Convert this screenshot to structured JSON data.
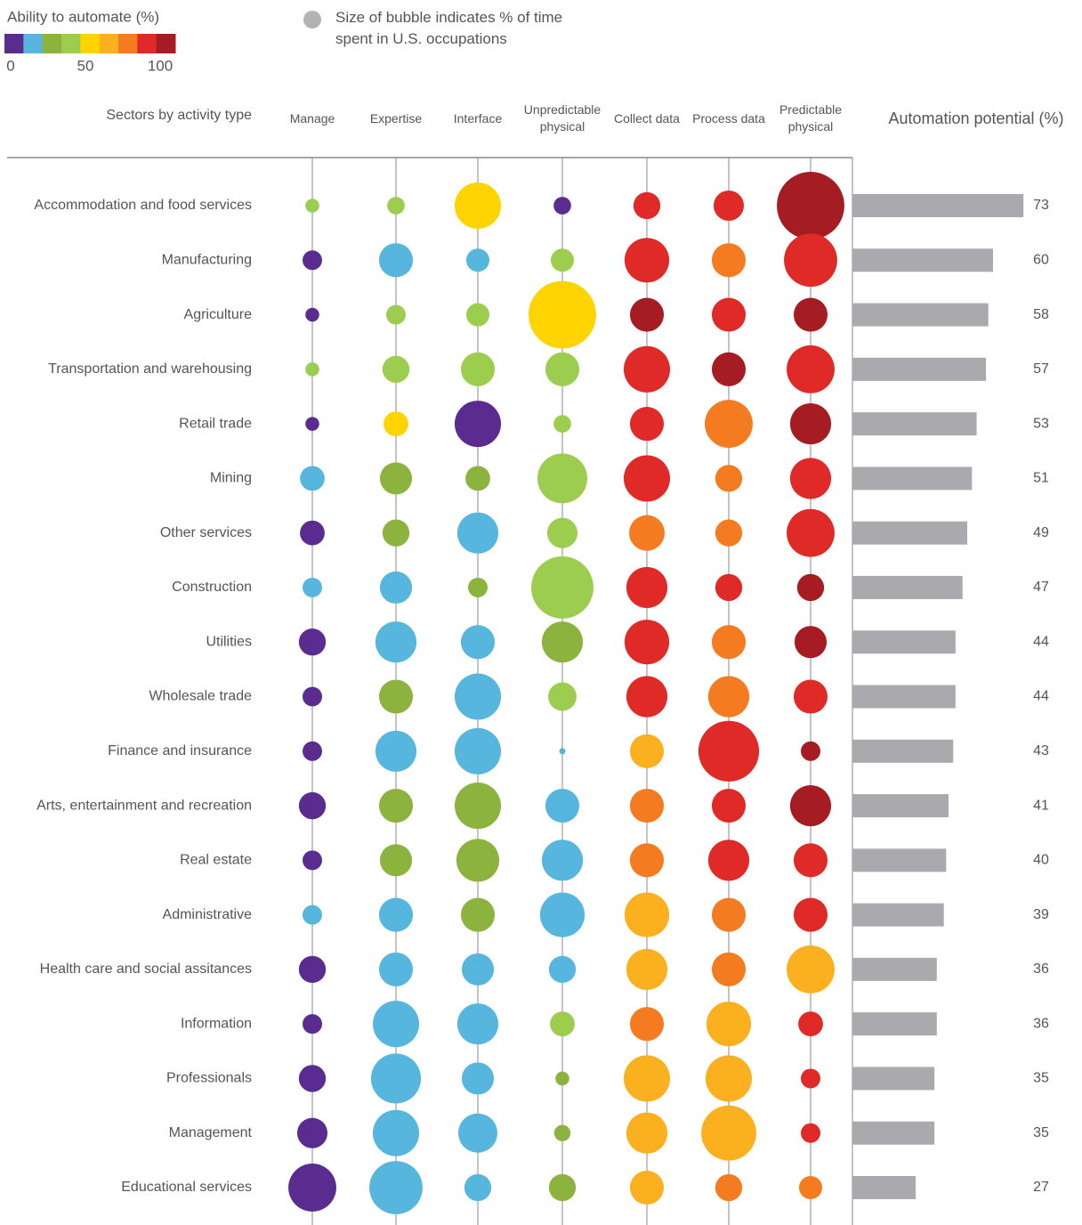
{
  "chart_data": {
    "type": "bubble-matrix",
    "row_header": "Sectors by activity type",
    "color_legend": {
      "title": "Ability to automate (%)",
      "range": [
        0,
        100
      ],
      "ticks": [
        0,
        50,
        100
      ],
      "colors": [
        "#5b2c8f",
        "#56b6de",
        "#8db33f",
        "#9ccd4e",
        "#ffd400",
        "#fbb01f",
        "#f47b20",
        "#e02a27",
        "#a51d23"
      ]
    },
    "size_legend": "Size of bubble indicates % of time spent in U.S. occupations",
    "size_legend_color": "#b3b3b3",
    "categories": [
      "Accommodation and food services",
      "Manufacturing",
      "Agriculture",
      "Transportation and warehousing",
      "Retail trade",
      "Mining",
      "Other services",
      "Construction",
      "Utilities",
      "Wholesale trade",
      "Finance and insurance",
      "Arts, entertainment and recreation",
      "Real estate",
      "Administrative",
      "Health care and social assitances",
      "Information",
      "Professionals",
      "Management",
      "Educational services"
    ],
    "series": [
      {
        "name": "Manage",
        "sizes": [
          0.5,
          1,
          0.5,
          0.5,
          0.5,
          1.6,
          1.6,
          1,
          1.9,
          1,
          1,
          1.9,
          1,
          1,
          1.9,
          1,
          1.9,
          2.4,
          6
        ],
        "automation": [
          39,
          6,
          6,
          39,
          6,
          17,
          6,
          17,
          6,
          6,
          6,
          6,
          6,
          17,
          6,
          6,
          6,
          6,
          6
        ]
      },
      {
        "name": "Expertise",
        "sizes": [
          0.8,
          3,
          1,
          1.9,
          1.6,
          2.7,
          1.9,
          2.7,
          4.4,
          3,
          4.4,
          3,
          2.7,
          3,
          3,
          5.6,
          6.5,
          5.6,
          7.4
        ],
        "automation": [
          39,
          17,
          39,
          39,
          50,
          28,
          28,
          17,
          17,
          28,
          17,
          28,
          28,
          17,
          17,
          17,
          17,
          17,
          17
        ]
      },
      {
        "name": "Interface",
        "sizes": [
          5.6,
          1.4,
          1.4,
          3,
          5.6,
          1.6,
          4.4,
          1,
          3,
          5.6,
          5.6,
          5.6,
          4.8,
          3,
          2.7,
          4.4,
          2.7,
          4,
          1.9
        ],
        "automation": [
          50,
          17,
          39,
          39,
          6,
          28,
          17,
          28,
          17,
          17,
          17,
          28,
          28,
          28,
          17,
          17,
          17,
          17,
          17
        ]
      },
      {
        "name": "Unpredictable physical",
        "sizes": [
          0.8,
          1.4,
          11.9,
          3,
          0.8,
          6.5,
          2.4,
          10.1,
          4.4,
          2.1,
          0.1,
          3,
          4.4,
          5.2,
          1.9,
          1.6,
          0.5,
          0.7,
          1.9
        ],
        "automation": [
          6,
          39,
          50,
          39,
          39,
          39,
          39,
          39,
          28,
          39,
          17,
          17,
          17,
          17,
          17,
          39,
          28,
          28,
          28
        ]
      },
      {
        "name": "Collect data",
        "sizes": [
          1.9,
          5.2,
          3,
          5.6,
          3,
          5.6,
          3.3,
          4.4,
          5.2,
          4.4,
          3,
          3,
          3,
          5.2,
          4.4,
          3,
          5.6,
          4.4,
          3
        ],
        "automation": [
          83,
          83,
          94,
          83,
          83,
          83,
          72,
          83,
          83,
          83,
          61,
          72,
          72,
          61,
          61,
          72,
          61,
          61,
          61
        ]
      },
      {
        "name": "Process data",
        "sizes": [
          2.4,
          3,
          3,
          3,
          6,
          1.9,
          1.9,
          1.9,
          3,
          4.4,
          9.6,
          3,
          4.4,
          3,
          3,
          5.2,
          5.6,
          7.9,
          1.9
        ],
        "automation": [
          83,
          72,
          83,
          94,
          72,
          72,
          72,
          83,
          72,
          72,
          83,
          83,
          83,
          72,
          72,
          61,
          61,
          61,
          72
        ]
      },
      {
        "name": "Predictable physical",
        "sizes": [
          11.9,
          7.4,
          3,
          6,
          4.4,
          4.4,
          6,
          1.9,
          2.7,
          3,
          1,
          4.4,
          3,
          3,
          6,
          1.6,
          1,
          1,
          1.4
        ],
        "automation": [
          94,
          83,
          94,
          83,
          94,
          83,
          83,
          94,
          94,
          83,
          94,
          94,
          83,
          83,
          61,
          83,
          83,
          83,
          72
        ]
      }
    ],
    "bars": {
      "title": "Automation potential (%)",
      "color": "#aaa9ad",
      "xlim": [
        0,
        90
      ],
      "values": [
        73,
        60,
        58,
        57,
        53,
        51,
        49,
        47,
        44,
        44,
        43,
        41,
        40,
        39,
        36,
        36,
        35,
        35,
        27
      ]
    }
  }
}
